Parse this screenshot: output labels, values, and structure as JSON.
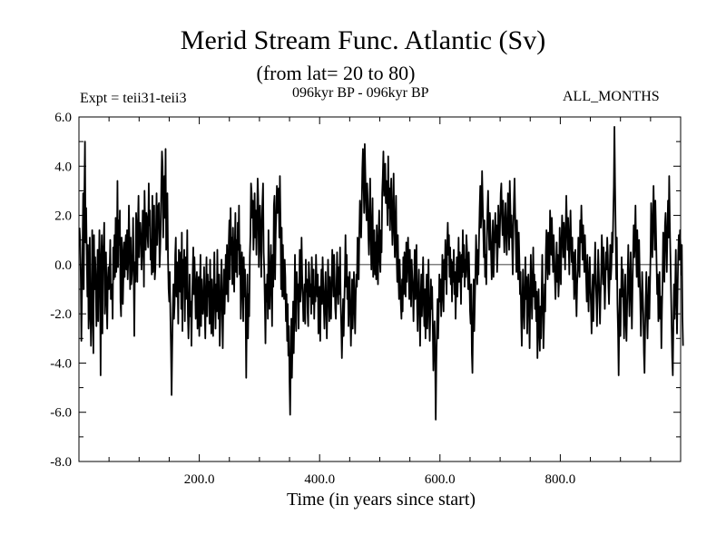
{
  "chart_data": {
    "type": "line",
    "title": "Merid Stream Func. Atlantic (Sv)",
    "subtitle": "(from lat= 20 to 80)",
    "annotations": {
      "experiment": "Expt = teii31-teii3",
      "period": "096kyr BP - 096kyr BP",
      "months": "ALL_MONTHS"
    },
    "xlabel": "Time (in years since start)",
    "ylabel": "",
    "xlim": [
      0,
      1000
    ],
    "ylim": [
      -8,
      6
    ],
    "xticks": [
      200,
      400,
      600,
      800
    ],
    "xtick_labels": [
      "200.0",
      "400.0",
      "600.0",
      "800.0"
    ],
    "yticks": [
      6,
      4,
      2,
      0,
      -2,
      -4,
      -6,
      -8
    ],
    "ytick_labels": [
      "6.0",
      "4.0",
      "2.0",
      "0.0",
      "-2.0",
      "-4.0",
      "-6.0",
      "-8.0"
    ],
    "zero_line": true,
    "grid": false,
    "legend": "none",
    "series": [
      {
        "name": "",
        "color": "#000000",
        "x_start": 1,
        "x_step": 1,
        "values": [
          1.5,
          1.0,
          -0.5,
          -3.1,
          -1.2,
          0.7,
          2.9,
          -1.0,
          2.8,
          5.0,
          0.9,
          2.3,
          0.4,
          -1.3,
          0.8,
          -2.6,
          -2.0,
          1.1,
          -1.6,
          -3.3,
          -2.2,
          1.4,
          -0.9,
          -3.6,
          1.2,
          -1.0,
          0.3,
          -0.7,
          -2.5,
          -1.1,
          0.6,
          -2.3,
          -0.4,
          1.4,
          -0.3,
          -4.5,
          0.1,
          1.2,
          -2.8,
          0.5,
          0.8,
          1.7,
          -2.0,
          -0.8,
          0.5,
          -1.6,
          -2.6,
          -0.6,
          -0.1,
          -1.0,
          -0.3,
          1.0,
          -1.4,
          -1.2,
          -0.8,
          -2.2,
          0.7,
          -0.6,
          1.2,
          -0.5,
          1.9,
          -0.3,
          0.2,
          3.4,
          -0.1,
          1.8,
          0.8,
          2.2,
          -1.5,
          -2.1,
          1.1,
          0.6,
          -1.6,
          -0.4,
          0.9,
          -0.5,
          0.8,
          1.2,
          -0.2,
          1.4,
          -0.6,
          0.3,
          2.4,
          1.0,
          -1.0,
          1.1,
          -0.8,
          -0.4,
          0.2,
          1.9,
          -0.3,
          -2.9,
          0.1,
          -0.7,
          2.1,
          1.3,
          -0.7,
          1.6,
          2.8,
          0.3,
          1.4,
          1.7,
          1.1,
          -0.2,
          0.5,
          2.2,
          1.8,
          -0.9,
          3.0,
          1.5,
          0.6,
          2.1,
          1.9,
          1.2,
          0.7,
          3.3,
          1.6,
          2.2,
          0.2,
          1.0,
          -0.4,
          2.8,
          -0.3,
          1.1,
          2.4,
          -0.6,
          -0.2,
          1.3,
          2.9,
          0.8,
          1.8,
          2.4,
          2.5,
          -0.1,
          0.6,
          1.6,
          3.4,
          4.6,
          4.0,
          1.1,
          2.4,
          3.6,
          1.9,
          4.7,
          0.6,
          1.2,
          2.9,
          0.3,
          -1.0,
          -1.5,
          -0.3,
          -2.1,
          -3.5,
          -5.3,
          -3.4,
          -1.8,
          -0.8,
          -2.2,
          -1.6,
          0.4,
          1.1,
          -1.3,
          0.1,
          -0.7,
          -2.4,
          0.6,
          -0.5,
          -1.1,
          0.5,
          -1.8,
          1.3,
          -2.7,
          0.2,
          -0.9,
          0.6,
          -2.3,
          0.3,
          -1.4,
          -0.6,
          1.4,
          -2.0,
          -3.0,
          -1.8,
          -0.4,
          -2.1,
          -1.5,
          -3.3,
          -1.6,
          -0.4,
          0.7,
          -1.2,
          0.3,
          -0.8,
          -2.2,
          -0.9,
          -0.3,
          -2.6,
          -1.4,
          -0.5,
          -2.9,
          -1.0,
          0.4,
          -2.5,
          -0.6,
          -1.7,
          -2.0,
          -1.2,
          -0.1,
          -1.9,
          -3.0,
          -1.1,
          0.3,
          -2.1,
          -0.4,
          -1.3,
          -0.7,
          -2.4,
          0.2,
          -1.6,
          -2.8,
          -0.6,
          -1.8,
          -2.9,
          -1.1,
          0.5,
          -1.4,
          -2.6,
          -0.8,
          -1.9,
          0.6,
          -1.2,
          -2.2,
          -0.4,
          -3.3,
          -2.3,
          -1.0,
          0.2,
          -1.7,
          -3.4,
          -1.5,
          -0.2,
          -2.0,
          -0.9,
          0.4,
          -1.2,
          0.8,
          -0.6,
          -1.5,
          0.9,
          1.8,
          -0.6,
          2.3,
          0.4,
          1.1,
          -0.8,
          1.5,
          0.3,
          -1.1,
          0.7,
          2.1,
          -0.3,
          1.0,
          -0.5,
          1.7,
          0.6,
          2.4,
          -0.4,
          0.8,
          -2.2,
          -1.0,
          0.5,
          -0.7,
          -2.3,
          0.3,
          -1.3,
          -0.2,
          -1.8,
          -4.6,
          -2.0,
          -0.4,
          -3.0,
          -1.2,
          -2.1,
          0.3,
          1.2,
          3.3,
          2.9,
          1.9,
          2.6,
          0.6,
          1.4,
          2.9,
          1.1,
          2.2,
          0.4,
          1.8,
          3.5,
          2.7,
          -0.1,
          1.3,
          2.4,
          0.9,
          -0.5,
          1.7,
          2.6,
          3.3,
          0.5,
          -0.2,
          -1.6,
          -3.2,
          -0.8,
          -1.5,
          -0.4,
          -2.2,
          1.4,
          -0.6,
          -1.8,
          -0.3,
          0.8,
          -1.1,
          -2.5,
          0.4,
          -0.9,
          2.4,
          2.8,
          -0.6,
          1.2,
          2.2,
          3.2,
          2.1,
          2.9,
          3.1,
          1.1,
          3.6,
          1.8,
          -1.0,
          1.5,
          -1.3,
          0.8,
          -0.7,
          -1.4,
          0.2,
          -0.5,
          -2.3,
          -1.2,
          -3.1,
          -1.6,
          -3.7,
          -2.5,
          -4.8,
          -6.1,
          -3.9,
          -2.2,
          -4.6,
          -3.0,
          -1.5,
          -3.6,
          -2.1,
          0.4,
          -1.8,
          -2.7,
          -0.3,
          -1.4,
          -0.8,
          -2.6,
          -1.0,
          0.6,
          -1.5,
          -0.9,
          1.1,
          -0.4,
          -1.3,
          -2.3,
          -1.5,
          -0.8,
          -2.4,
          0.2,
          -1.1,
          -0.6,
          -1.9,
          -2.5,
          0.1,
          -0.5,
          -1.3,
          -0.8,
          -2.0,
          0.3,
          -0.7,
          -1.6,
          -0.2,
          -2.2,
          -0.9,
          -1.5,
          0.4,
          -0.6,
          -1.3,
          -0.4,
          -2.8,
          -1.7,
          -0.9,
          -3.1,
          -1.2,
          -0.2,
          -1.6,
          0.3,
          -0.8,
          -1.7,
          -2.6,
          -1.1,
          -0.3,
          -1.9,
          -3.0,
          -1.4,
          0.2,
          -1.0,
          -2.3,
          -0.5,
          -1.4,
          -2.2,
          -0.7,
          0.6,
          -0.2,
          -1.3,
          0.4,
          -0.6,
          -1.8,
          -2.2,
          -1.0,
          0.5,
          -0.8,
          -1.6,
          -0.1,
          -1.2,
          0.7,
          -1.5,
          -2.5,
          -3.8,
          -2.6,
          -1.4,
          -2.9,
          -1.6,
          -0.5,
          1.2,
          -0.9,
          0.4,
          -1.4,
          -0.5,
          -2.5,
          -1.2,
          -0.3,
          -1.9,
          -3.3,
          -2.1,
          -0.6,
          -2.6,
          -1.5,
          -0.3,
          -1.7,
          -2.8,
          -1.3,
          -0.4,
          -0.9,
          1.1,
          0.3,
          -0.6,
          1.3,
          2.6,
          2.0,
          1.1,
          2.4,
          3.9,
          4.7,
          3.4,
          2.1,
          4.9,
          3.7,
          2.5,
          1.8,
          3.3,
          2.6,
          1.2,
          0.4,
          2.2,
          3.5,
          1.1,
          -0.2,
          1.5,
          2.7,
          -0.5,
          0.7,
          1.4,
          -0.4,
          0.9,
          -0.6,
          1.6,
          0.3,
          -0.8,
          1.1,
          2.2,
          0.2,
          -0.3,
          1.4,
          0.5,
          2.9,
          3.6,
          4.6,
          2.8,
          3.8,
          4.1,
          2.5,
          3.4,
          2.7,
          1.6,
          4.4,
          2.3,
          3.1,
          1.4,
          2.9,
          3.5,
          1.9,
          0.8,
          2.2,
          3.7,
          1.4,
          0.3,
          1.7,
          2.8,
          0.4,
          -0.7,
          1.2,
          -0.4,
          -1.4,
          0.2,
          -0.8,
          -1.6,
          -2.2,
          -0.6,
          -1.9,
          0.3,
          -1.2,
          0.5,
          -0.5,
          -1.3,
          0.9,
          -0.7,
          0.4,
          1.1,
          -0.2,
          -1.4,
          0.6,
          -0.8,
          -1.7,
          0.2,
          -0.5,
          -1.0,
          -2.3,
          -0.9,
          0.6,
          -1.4,
          -0.3,
          0.8,
          -1.7,
          -2.7,
          -1.1,
          -0.2,
          -1.8,
          -3.3,
          -1.4,
          -0.4,
          -2.1,
          -0.8,
          0.3,
          -1.6,
          -2.5,
          -1.0,
          -3.0,
          -1.3,
          -0.4,
          -2.6,
          -1.4,
          0.2,
          -1.9,
          -3.1,
          -2.0,
          -0.6,
          -1.8,
          -0.9,
          -2.4,
          -4.3,
          -3.0,
          -2.3,
          -3.8,
          -6.3,
          -4.0,
          -2.6,
          -1.4,
          -3.0,
          -1.9,
          -0.4,
          -1.5,
          -0.6,
          -2.1,
          -1.3,
          0.4,
          -0.9,
          -1.9,
          0.2,
          -0.6,
          1.0,
          -0.3,
          -1.2,
          0.8,
          1.7,
          0.4,
          1.2,
          -0.5,
          0.7,
          -0.8,
          0.2,
          -1.5,
          0.1,
          -0.7,
          0.6,
          -1.2,
          -0.3,
          -2.2,
          -0.9,
          0.3,
          -1.3,
          -0.4,
          1.1,
          -0.7,
          0.5,
          -0.2,
          -1.6,
          0.4,
          -0.5,
          1.4,
          -0.3,
          0.8,
          -0.9,
          0.2,
          -0.5,
          1.2,
          0.6,
          -0.3,
          -1.0,
          0.5,
          -0.6,
          -1.9,
          -2.4,
          -0.8,
          -3.6,
          -4.4,
          -2.2,
          -0.6,
          -2.7,
          -1.5,
          -0.3,
          1.2,
          0.3,
          -0.8,
          0.6,
          -0.4,
          1.1,
          2.3,
          3.2,
          1.5,
          2.1,
          3.8,
          2.6,
          1.4,
          0.3,
          1.8,
          -0.5,
          0.4,
          -0.8,
          1.1,
          2.2,
          3.0,
          1.6,
          0.6,
          2.1,
          1.3,
          0.4,
          -0.6,
          0.8,
          1.8,
          -0.5,
          0.3,
          1.4,
          2.1,
          0.9,
          1.6,
          -0.3,
          0.6,
          2.4,
          1.5,
          0.7,
          1.8,
          2.9,
          3.3,
          2.0,
          1.2,
          2.6,
          1.4,
          0.5,
          1.7,
          2.5,
          1.3,
          0.4,
          1.6,
          2.9,
          1.8,
          0.6,
          3.4,
          2.4,
          1.1,
          2.0,
          0.8,
          -0.4,
          1.5,
          2.6,
          3.5,
          2.1,
          1.0,
          -0.3,
          1.8,
          0.6,
          -0.6,
          1.3,
          0.2,
          -1.2,
          -0.3,
          -2.2,
          -3.3,
          -1.5,
          -0.2,
          -1.8,
          -2.6,
          -1.2,
          0.3,
          -1.4,
          -0.5,
          -2.8,
          -1.5,
          -0.4,
          -1.6,
          -3.4,
          -1.2,
          0.4,
          -1.0,
          -2.2,
          -0.6,
          0.7,
          -1.3,
          -0.4,
          -1.8,
          -0.7,
          -2.3,
          -1.1,
          -3.8,
          -2.4,
          -1.0,
          -2.7,
          -3.5,
          -1.7,
          -3.0,
          -1.2,
          0.4,
          -1.5,
          -3.4,
          -2.3,
          -0.8,
          -1.9,
          0.5,
          1.4,
          0.3,
          -0.6,
          1.3,
          0.6,
          -0.4,
          2.2,
          1.3,
          0.4,
          1.9,
          0.6,
          -0.3,
          1.2,
          0.4,
          -0.5,
          -1.4,
          -0.3,
          0.9,
          -0.7,
          0.4,
          -1.3,
          -0.6,
          1.5,
          0.3,
          -0.8,
          1.0,
          2.0,
          1.2,
          0.3,
          1.7,
          0.9,
          -0.2,
          1.5,
          2.8,
          1.6,
          0.6,
          1.9,
          0.7,
          -0.4,
          1.3,
          2.2,
          0.9,
          0.1,
          1.1,
          -0.6,
          0.5,
          -1.4,
          -0.7,
          0.6,
          -1.1,
          -2.1,
          -0.8,
          -0.2,
          1.1,
          0.3,
          -0.5,
          1.8,
          0.9,
          2.4,
          1.4,
          0.2,
          1.6,
          0.5,
          -0.3,
          1.2,
          0.2,
          -0.6,
          -1.5,
          0.4,
          -0.8,
          -1.9,
          -0.6,
          0.3,
          -0.9,
          -1.7,
          -2.8,
          -1.3,
          -0.4,
          -2.3,
          -1.2,
          -0.3,
          0.9,
          -0.6,
          -1.4,
          -2.5,
          -0.9,
          0.6,
          -0.3,
          -1.5,
          -2.4,
          -1.2,
          -0.3,
          1.2,
          0.4,
          -0.8,
          0.7,
          -0.5,
          -1.8,
          -0.7,
          0.5,
          -0.2,
          1.1,
          0.4,
          -0.9,
          -1.6,
          -0.4,
          0.8,
          -0.6,
          -0.1,
          1.3,
          0.5,
          1.9,
          3.2,
          5.6,
          3.3,
          1.4,
          -0.6,
          1.1,
          -1.6,
          -2.7,
          -4.5,
          -2.2,
          -1.0,
          -2.9,
          -1.4,
          0.3,
          -1.3,
          -0.2,
          -1.6,
          -3.0,
          -1.3,
          -0.4,
          -2.4,
          -3.1,
          -1.8,
          -0.4,
          0.8,
          -1.0,
          -2.1,
          -0.6,
          0.5,
          -1.2,
          -2.6,
          -1.0,
          0.4,
          1.6,
          0.3,
          1.1,
          2.4,
          0.6,
          -0.5,
          1.4,
          0.2,
          -0.9,
          1.0,
          -0.4,
          -1.5,
          -2.9,
          -1.8,
          -0.3,
          -1.1,
          -2.0,
          -3.6,
          -4.4,
          -2.6,
          -1.4,
          -0.3,
          -1.9,
          -3.0,
          -1.6,
          -0.5,
          -2.2,
          -0.9,
          0.4,
          2.5,
          1.4,
          0.3,
          1.8,
          3.2,
          1.8,
          0.6,
          2.6,
          1.4,
          0.1,
          -1.2,
          -0.4,
          -2.3,
          -1.6,
          -0.3,
          -2.2,
          -1.3,
          -3.4,
          -1.8,
          -0.6,
          1.3,
          0.4,
          -0.7,
          1.6,
          2.1,
          0.9,
          -0.3,
          1.3,
          2.6,
          1.1,
          3.6,
          1.7,
          0.4,
          -1.0,
          -2.4,
          -3.8,
          -4.5,
          -2.4,
          -0.8,
          -2.2,
          -0.9,
          0.6,
          -1.5,
          -2.8,
          -1.1,
          0.4,
          1.2,
          0.2,
          1.4,
          0.6,
          -0.4,
          0.8,
          -2.1,
          -3.3
        ]
      }
    ]
  }
}
